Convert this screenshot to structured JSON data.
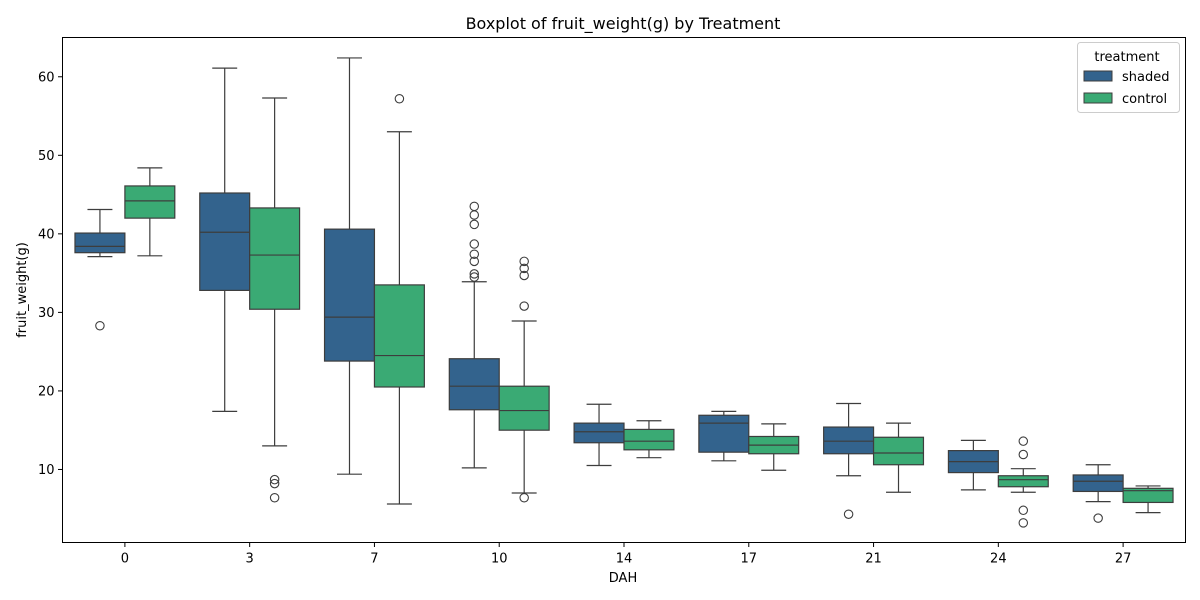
{
  "chart_data": {
    "type": "boxplot",
    "title": "Boxplot of fruit_weight(g) by Treatment",
    "xlabel": "DAH",
    "ylabel": "fruit_weight(g)",
    "categories": [
      "0",
      "3",
      "7",
      "10",
      "14",
      "17",
      "21",
      "24",
      "27"
    ],
    "ylim": [
      0.7,
      65
    ],
    "yticks": [
      10,
      20,
      30,
      40,
      50,
      60
    ],
    "grid": false,
    "legend": {
      "title": "treatment",
      "placement": "top-right"
    },
    "series": [
      {
        "name": "shaded",
        "color": "#33638d",
        "boxes": [
          {
            "whislo": 37.1,
            "q1": 37.6,
            "med": 38.4,
            "q3": 40.1,
            "whishi": 43.1,
            "fliers": [
              28.3
            ]
          },
          {
            "whislo": 17.4,
            "q1": 32.8,
            "med": 40.2,
            "q3": 45.2,
            "whishi": 61.1,
            "fliers": []
          },
          {
            "whislo": 9.4,
            "q1": 23.8,
            "med": 29.4,
            "q3": 40.6,
            "whishi": 62.4,
            "fliers": []
          },
          {
            "whislo": 10.2,
            "q1": 17.6,
            "med": 20.6,
            "q3": 24.1,
            "whishi": 33.9,
            "fliers": [
              34.5,
              34.9,
              36.5,
              37.4,
              38.7,
              41.2,
              42.4,
              43.5
            ]
          },
          {
            "whislo": 10.5,
            "q1": 13.4,
            "med": 14.8,
            "q3": 15.9,
            "whishi": 18.3,
            "fliers": []
          },
          {
            "whislo": 11.1,
            "q1": 12.2,
            "med": 15.9,
            "q3": 16.9,
            "whishi": 17.4,
            "fliers": []
          },
          {
            "whislo": 9.2,
            "q1": 12.0,
            "med": 13.6,
            "q3": 15.4,
            "whishi": 18.4,
            "fliers": [
              4.3
            ]
          },
          {
            "whislo": 7.4,
            "q1": 9.6,
            "med": 11.0,
            "q3": 12.4,
            "whishi": 13.7,
            "fliers": []
          },
          {
            "whislo": 5.9,
            "q1": 7.2,
            "med": 8.5,
            "q3": 9.3,
            "whishi": 10.6,
            "fliers": [
              3.8
            ]
          }
        ]
      },
      {
        "name": "control",
        "color": "#3aaa74",
        "boxes": [
          {
            "whislo": 37.2,
            "q1": 42.0,
            "med": 44.2,
            "q3": 46.1,
            "whishi": 48.4,
            "fliers": []
          },
          {
            "whislo": 13.0,
            "q1": 30.4,
            "med": 37.3,
            "q3": 43.3,
            "whishi": 57.3,
            "fliers": [
              6.4,
              8.2,
              8.7
            ]
          },
          {
            "whislo": 5.6,
            "q1": 20.5,
            "med": 24.5,
            "q3": 33.5,
            "whishi": 53.0,
            "fliers": [
              57.2
            ]
          },
          {
            "whislo": 7.0,
            "q1": 15.0,
            "med": 17.5,
            "q3": 20.6,
            "whishi": 28.9,
            "fliers": [
              6.4,
              30.8,
              34.7,
              35.6,
              36.5
            ]
          },
          {
            "whislo": 11.5,
            "q1": 12.5,
            "med": 13.6,
            "q3": 15.1,
            "whishi": 16.2,
            "fliers": []
          },
          {
            "whislo": 9.9,
            "q1": 12.0,
            "med": 13.1,
            "q3": 14.2,
            "whishi": 15.8,
            "fliers": []
          },
          {
            "whislo": 7.1,
            "q1": 10.6,
            "med": 12.1,
            "q3": 14.1,
            "whishi": 15.9,
            "fliers": []
          },
          {
            "whislo": 7.1,
            "q1": 7.8,
            "med": 8.7,
            "q3": 9.2,
            "whishi": 10.1,
            "fliers": [
              3.2,
              4.8,
              11.9,
              13.6
            ]
          },
          {
            "whislo": 4.5,
            "q1": 5.8,
            "med": 7.3,
            "q3": 7.6,
            "whishi": 7.9,
            "fliers": []
          }
        ]
      }
    ]
  }
}
